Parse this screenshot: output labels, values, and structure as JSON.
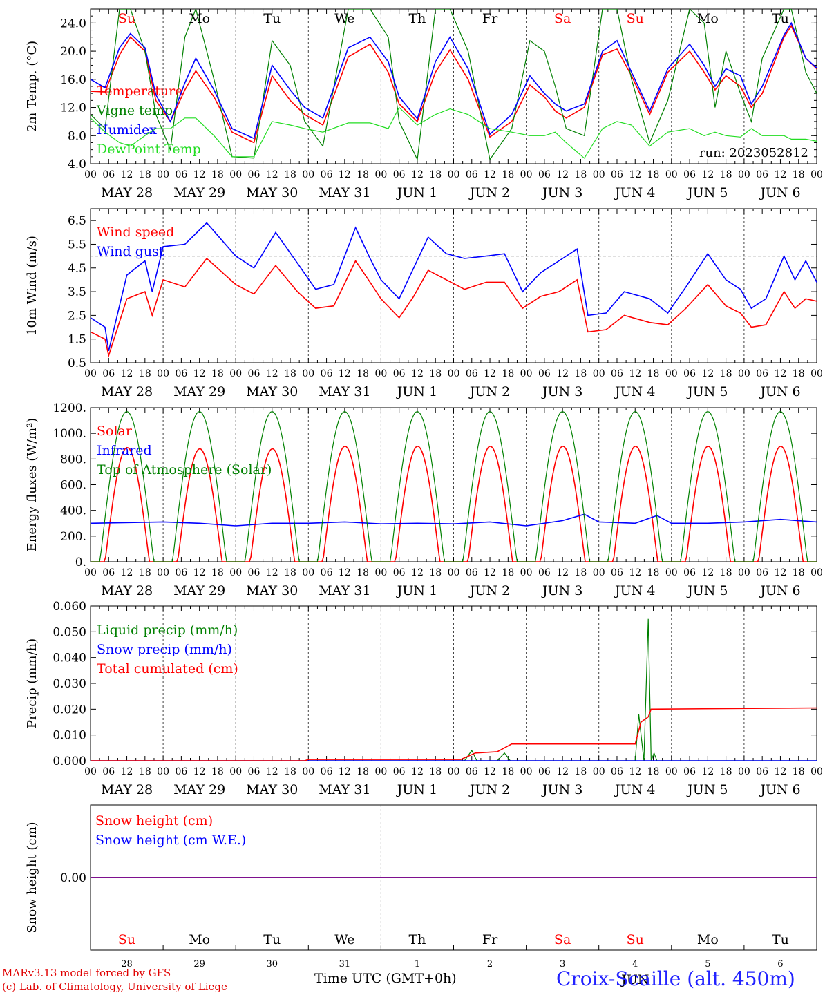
{
  "colors": {
    "red": "#ff0000",
    "blue": "#0000ff",
    "green": "#008000",
    "lightgreen": "#22dd22",
    "purple": "#7f007f",
    "frame": "#000000",
    "weekday": "#000000",
    "weekend": "#ff0000"
  },
  "days": [
    {
      "wd": "Su",
      "weekend": true,
      "date": "MAY 28",
      "num": "28"
    },
    {
      "wd": "Mo",
      "weekend": false,
      "date": "MAY 29",
      "num": "29"
    },
    {
      "wd": "Tu",
      "weekend": false,
      "date": "MAY 30",
      "num": "30"
    },
    {
      "wd": "We",
      "weekend": false,
      "date": "MAY 31",
      "num": "31"
    },
    {
      "wd": "Th",
      "weekend": false,
      "date": "JUN  1",
      "num": "1"
    },
    {
      "wd": "Fr",
      "weekend": false,
      "date": "JUN  2",
      "num": "2"
    },
    {
      "wd": "Sa",
      "weekend": true,
      "date": "JUN  3",
      "num": "3"
    },
    {
      "wd": "Su",
      "weekend": true,
      "date": "JUN  4",
      "num": "4"
    },
    {
      "wd": "Mo",
      "weekend": false,
      "date": "JUN  5",
      "num": "5"
    },
    {
      "wd": "Tu",
      "weekend": false,
      "date": "JUN  6",
      "num": "6"
    }
  ],
  "hour_ticks": [
    "00",
    "06",
    "12",
    "18"
  ],
  "run_label": "run: 2023052812",
  "footer": {
    "model": "MARv3.13 model forced by GFS",
    "lab": "(c) Lab. of Climatology, University of Liege",
    "time_axis": "Time UTC (GMT+0h)",
    "month": "JUN",
    "station": "Croix-Scaille (alt. 450m)"
  },
  "chart_data": [
    {
      "id": "temp",
      "type": "line",
      "ylabel": "2m Temp. (°C)",
      "ylim": [
        4.0,
        26.0
      ],
      "yticks": [
        "4.0",
        "8.0",
        "12.0",
        "16.0",
        "20.0",
        "24.0"
      ],
      "x_unit": "days since 28 May 00 UTC",
      "series": [
        {
          "name": "Temperature",
          "color": "red",
          "x": [
            0,
            0.2,
            0.4,
            0.55,
            0.75,
            0.9,
            1.1,
            1.3,
            1.45,
            1.7,
            1.95,
            2.25,
            2.5,
            2.75,
            2.95,
            3.2,
            3.55,
            3.85,
            4.1,
            4.25,
            4.5,
            4.75,
            4.95,
            5.2,
            5.5,
            5.8,
            6.05,
            6.25,
            6.4,
            6.55,
            6.8,
            7.05,
            7.25,
            7.45,
            7.7,
            7.95,
            8.25,
            8.45,
            8.6,
            8.75,
            8.95,
            9.1,
            9.25,
            9.55,
            9.65,
            9.85,
            10
          ],
          "y": [
            14.3,
            14.2,
            19.5,
            22.0,
            20.0,
            13.0,
            10.0,
            14.5,
            17.2,
            13.5,
            8.5,
            7.0,
            16.5,
            13.0,
            11.0,
            9.5,
            19.2,
            21.0,
            17.0,
            12.5,
            10.0,
            17.0,
            20.2,
            16.0,
            7.8,
            10.0,
            15.2,
            13.5,
            11.5,
            10.5,
            12.0,
            19.5,
            20.3,
            16.5,
            11.0,
            17.0,
            20.0,
            17.0,
            14.5,
            16.5,
            15.0,
            12.0,
            14.0,
            22.0,
            23.6,
            19.0,
            17.5
          ]
        },
        {
          "name": "Vigne temp",
          "color": "green",
          "x": [
            0,
            0.2,
            0.4,
            0.55,
            0.75,
            0.9,
            1.1,
            1.3,
            1.45,
            1.7,
            1.95,
            2.25,
            2.5,
            2.75,
            2.95,
            3.2,
            3.55,
            3.85,
            4.1,
            4.25,
            4.5,
            4.75,
            4.95,
            5.2,
            5.5,
            5.8,
            6.05,
            6.25,
            6.4,
            6.55,
            6.8,
            7.05,
            7.25,
            7.45,
            7.7,
            7.95,
            8.25,
            8.45,
            8.6,
            8.75,
            8.95,
            9.1,
            9.25,
            9.55,
            9.65,
            9.85,
            10
          ],
          "y": [
            11.0,
            9.0,
            26.0,
            26.0,
            20.0,
            11.0,
            6.0,
            22.0,
            26.0,
            16.0,
            5.0,
            4.8,
            21.5,
            18.0,
            10.0,
            6.5,
            26.0,
            26.0,
            22.0,
            10.0,
            4.6,
            26.0,
            26.0,
            20.0,
            4.6,
            9.0,
            21.5,
            20.0,
            15.0,
            9.0,
            8.0,
            26.0,
            26.0,
            16.0,
            7.0,
            13.0,
            26.0,
            24.0,
            12.0,
            20.0,
            14.0,
            10.0,
            19.0,
            26.0,
            26.0,
            17.0,
            14.0
          ]
        },
        {
          "name": "Humidex",
          "color": "blue",
          "x": [
            0,
            0.2,
            0.4,
            0.55,
            0.75,
            0.9,
            1.1,
            1.3,
            1.45,
            1.7,
            1.95,
            2.25,
            2.5,
            2.75,
            2.95,
            3.2,
            3.55,
            3.85,
            4.1,
            4.25,
            4.5,
            4.75,
            4.95,
            5.2,
            5.5,
            5.8,
            6.05,
            6.25,
            6.4,
            6.55,
            6.8,
            7.05,
            7.25,
            7.45,
            7.7,
            7.95,
            8.25,
            8.45,
            8.6,
            8.75,
            8.95,
            9.1,
            9.25,
            9.55,
            9.65,
            9.85,
            10
          ],
          "y": [
            16.0,
            14.8,
            20.5,
            22.5,
            20.5,
            13.8,
            10.0,
            15.5,
            19.0,
            14.5,
            9.0,
            7.6,
            18.0,
            14.5,
            12.0,
            10.5,
            20.5,
            22.0,
            18.5,
            13.5,
            10.4,
            18.5,
            22.0,
            17.5,
            8.2,
            11.0,
            16.5,
            14.0,
            12.5,
            11.5,
            12.5,
            20.0,
            21.5,
            17.0,
            11.5,
            17.5,
            21.0,
            18.0,
            15.0,
            17.5,
            16.5,
            12.5,
            15.0,
            22.3,
            24.0,
            19.0,
            17.6
          ]
        },
        {
          "name": "DewPoint Temp",
          "color": "lightgreen",
          "x": [
            0,
            0.2,
            0.4,
            0.55,
            0.75,
            0.9,
            1.1,
            1.3,
            1.45,
            1.7,
            1.95,
            2.25,
            2.5,
            2.75,
            2.95,
            3.2,
            3.55,
            3.85,
            4.1,
            4.25,
            4.5,
            4.75,
            4.95,
            5.2,
            5.5,
            5.8,
            6.05,
            6.25,
            6.4,
            6.55,
            6.8,
            7.05,
            7.25,
            7.45,
            7.7,
            7.95,
            8.25,
            8.45,
            8.6,
            8.75,
            8.95,
            9.1,
            9.25,
            9.55,
            9.65,
            9.85,
            10
          ],
          "y": [
            10.5,
            8.5,
            7.0,
            6.5,
            8.0,
            9.0,
            9.0,
            10.5,
            10.5,
            8.0,
            5.0,
            5.0,
            10.0,
            9.5,
            9.0,
            8.5,
            9.8,
            9.8,
            9.0,
            12.0,
            9.5,
            11.0,
            11.8,
            11.0,
            9.0,
            8.5,
            8.0,
            8.0,
            8.5,
            7.0,
            4.8,
            9.0,
            10.0,
            9.5,
            6.5,
            8.5,
            9.0,
            8.0,
            8.5,
            8.0,
            7.8,
            9.0,
            8.0,
            8.0,
            7.5,
            7.5,
            7.2
          ]
        }
      ]
    },
    {
      "id": "wind",
      "type": "line",
      "ylabel": "10m Wind (m/s)",
      "ylim": [
        0.5,
        7.0
      ],
      "yticks": [
        "0.5",
        "1.5",
        "2.5",
        "3.5",
        "4.5",
        "5.5",
        "6.5"
      ],
      "reference_line": 5.0,
      "x_unit": "days since 28 May 00 UTC",
      "series": [
        {
          "name": "Wind speed",
          "color": "red",
          "x": [
            0,
            0.2,
            0.25,
            0.5,
            0.75,
            0.85,
            1.0,
            1.3,
            1.6,
            2.0,
            2.25,
            2.55,
            2.85,
            3.1,
            3.35,
            3.65,
            3.85,
            4.0,
            4.25,
            4.45,
            4.65,
            4.9,
            5.15,
            5.45,
            5.7,
            5.95,
            6.2,
            6.45,
            6.7,
            6.85,
            7.1,
            7.35,
            7.7,
            7.95,
            8.2,
            8.5,
            8.75,
            8.95,
            9.1,
            9.3,
            9.55,
            9.7,
            9.85,
            10
          ],
          "y": [
            1.8,
            1.5,
            0.8,
            3.2,
            3.5,
            2.5,
            4.0,
            3.7,
            4.9,
            3.8,
            3.4,
            4.6,
            3.5,
            2.8,
            2.9,
            4.8,
            3.9,
            3.2,
            2.4,
            3.3,
            4.4,
            4.0,
            3.6,
            3.9,
            3.9,
            2.8,
            3.3,
            3.5,
            4.0,
            1.8,
            1.9,
            2.5,
            2.2,
            2.1,
            2.8,
            3.8,
            2.9,
            2.6,
            2.0,
            2.1,
            3.5,
            2.8,
            3.2,
            3.1
          ]
        },
        {
          "name": "Wind gust",
          "color": "blue",
          "x": [
            0,
            0.2,
            0.25,
            0.5,
            0.75,
            0.85,
            1.0,
            1.3,
            1.6,
            2.0,
            2.25,
            2.55,
            2.85,
            3.1,
            3.35,
            3.65,
            3.85,
            4.0,
            4.25,
            4.45,
            4.65,
            4.9,
            5.15,
            5.45,
            5.7,
            5.95,
            6.2,
            6.45,
            6.7,
            6.85,
            7.1,
            7.35,
            7.7,
            7.95,
            8.2,
            8.5,
            8.75,
            8.95,
            9.1,
            9.3,
            9.55,
            9.7,
            9.85,
            10
          ],
          "y": [
            2.4,
            2.0,
            1.0,
            4.2,
            4.8,
            3.5,
            5.4,
            5.5,
            6.4,
            5.0,
            4.5,
            6.0,
            4.7,
            3.6,
            3.8,
            6.2,
            4.9,
            4.0,
            3.2,
            4.5,
            5.8,
            5.1,
            4.9,
            5.0,
            5.1,
            3.5,
            4.3,
            4.8,
            5.3,
            2.5,
            2.6,
            3.5,
            3.2,
            2.6,
            3.7,
            5.1,
            4.0,
            3.6,
            2.8,
            3.2,
            5.0,
            4.0,
            4.8,
            3.9
          ]
        }
      ]
    },
    {
      "id": "energy",
      "type": "line",
      "ylabel": "Energy fluxes (W/m²)",
      "ylim": [
        0,
        1200
      ],
      "yticks": [
        "0.",
        "200.",
        "400.",
        "600.",
        "800.",
        "1000.",
        "1200."
      ],
      "x_unit": "days since 28 May 00 UTC",
      "solar_peak": [
        890,
        880,
        880,
        900,
        900,
        900,
        900,
        900,
        900,
        900
      ],
      "toa_peak": 1170,
      "series": [
        {
          "name": "Solar",
          "color": "red"
        },
        {
          "name": "Infrared",
          "color": "blue",
          "x": [
            0,
            1,
            1.5,
            2,
            2.5,
            3,
            3.5,
            4,
            4.5,
            5,
            5.5,
            6,
            6.5,
            6.8,
            7,
            7.5,
            7.8,
            8,
            8.5,
            9,
            9.5,
            10
          ],
          "y": [
            300,
            310,
            300,
            280,
            300,
            300,
            310,
            295,
            300,
            295,
            310,
            280,
            320,
            370,
            310,
            300,
            360,
            300,
            300,
            310,
            330,
            310
          ]
        },
        {
          "name": "Top of Atmosphere (Solar)",
          "color": "green"
        }
      ]
    },
    {
      "id": "precip",
      "type": "line",
      "ylabel": "Precip (mm/h)",
      "ylim": [
        0,
        0.06
      ],
      "yticks": [
        "0.000",
        "0.010",
        "0.020",
        "0.030",
        "0.040",
        "0.050",
        "0.060"
      ],
      "x_unit": "days since 28 May 00 UTC",
      "series": [
        {
          "name": "Liquid precip (mm/h)",
          "color": "green",
          "x": [
            0,
            5.15,
            5.25,
            5.32,
            5.6,
            5.7,
            5.78,
            7.5,
            7.55,
            7.62,
            7.68,
            7.72,
            7.76,
            7.8,
            10
          ],
          "y": [
            0,
            0,
            0.004,
            0,
            0,
            0.003,
            0,
            0,
            0.018,
            0,
            0.055,
            0.0,
            0.003,
            0,
            0
          ]
        },
        {
          "name": "Snow precip (mm/h)",
          "color": "blue",
          "x": [
            0,
            10
          ],
          "y": [
            0,
            0
          ]
        },
        {
          "name": "Total cumulated (cm)",
          "color": "red",
          "x": [
            0,
            2.95,
            3.0,
            5.1,
            5.3,
            5.6,
            5.8,
            7.5,
            7.58,
            7.68,
            7.72,
            10
          ],
          "y": [
            0,
            0,
            0.0005,
            0.0005,
            0.003,
            0.0035,
            0.0065,
            0.0065,
            0.015,
            0.017,
            0.02,
            0.0205
          ]
        }
      ]
    },
    {
      "id": "snow",
      "type": "line",
      "ylabel": "Snow height (cm)",
      "ylim": [
        -0.01,
        0.01
      ],
      "yticks": [
        "0.00"
      ],
      "x_unit": "days since 28 May 00 UTC",
      "series": [
        {
          "name": "Snow height (cm)",
          "color": "red",
          "x": [
            0,
            10
          ],
          "y": [
            0,
            0
          ]
        },
        {
          "name": "Snow height (cm W.E.)",
          "color": "blue",
          "x": [
            0,
            10
          ],
          "y": [
            0,
            0
          ]
        }
      ]
    }
  ]
}
